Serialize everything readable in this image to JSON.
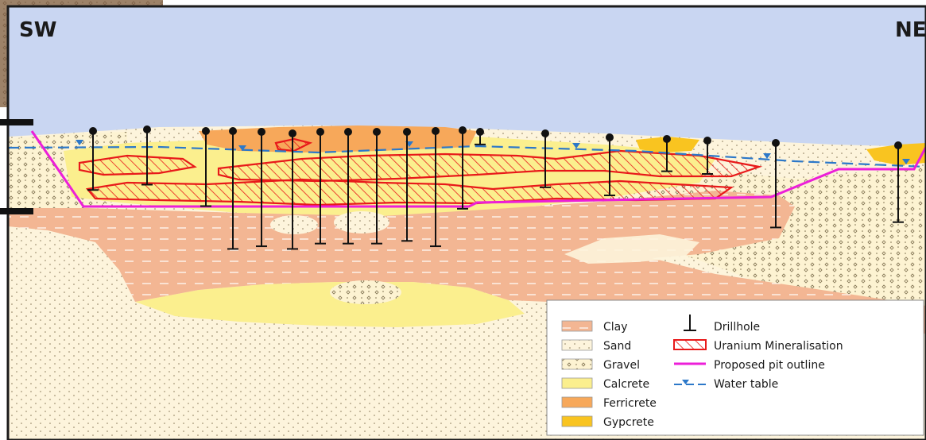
{
  "orientation": {
    "left": "SW",
    "right": "NE"
  },
  "legend": {
    "units": [
      {
        "label": "Clay",
        "pattern": "clay"
      },
      {
        "label": "Sand",
        "pattern": "sand"
      },
      {
        "label": "Gravel",
        "pattern": "gravel"
      },
      {
        "label": "Calcrete",
        "pattern": "calcrete"
      },
      {
        "label": "Ferricrete",
        "pattern": "ferricrete"
      },
      {
        "label": "Gypcrete",
        "pattern": "gypcrete"
      }
    ],
    "symbols": [
      {
        "label": "Drillhole",
        "symbol": "drillhole-icon"
      },
      {
        "label": "Uranium Mineralisation",
        "symbol": "mineralisation-hatch"
      },
      {
        "label": "Proposed pit outline",
        "symbol": "pit-outline-line"
      },
      {
        "label": "Water table",
        "symbol": "water-table-line"
      }
    ]
  },
  "colors": {
    "sky": "#c9d6f2",
    "clay": "#f3b693",
    "sand": "#fdf4dc",
    "calcrete": "#fbef8e",
    "ferricrete": "#f7a85a",
    "gypcrete": "#f9c420",
    "mineralisation": "#e8191a",
    "pit": "#ec1fd8",
    "water": "#2c78c9",
    "drillhole": "#111111"
  },
  "drillholes": [
    {
      "depth": 0.65
    },
    {
      "depth": 0.63
    },
    {
      "depth": 0.71
    },
    {
      "depth": 0.87
    },
    {
      "depth": 0.86
    },
    {
      "depth": 0.87
    },
    {
      "depth": 0.85
    },
    {
      "depth": 0.85
    },
    {
      "depth": 0.85
    },
    {
      "depth": 0.84
    },
    {
      "depth": 0.86
    },
    {
      "depth": 0.72
    },
    {
      "depth": 0.48
    },
    {
      "depth": 0.64
    },
    {
      "depth": 0.67
    },
    {
      "depth": 0.58
    },
    {
      "depth": 0.59
    },
    {
      "depth": 0.79
    },
    {
      "depth": 0.77
    }
  ]
}
